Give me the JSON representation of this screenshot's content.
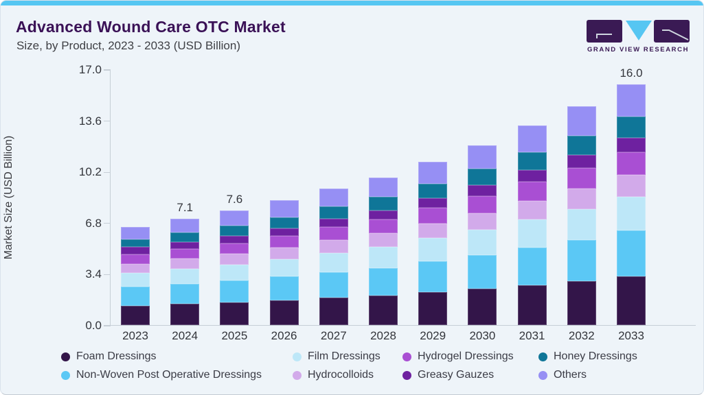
{
  "header": {
    "title": "Advanced Wound Care OTC Market",
    "subtitle": "Size, by Product, 2023 - 2033 (USD Billion)",
    "brand": "GRAND VIEW RESEARCH"
  },
  "colors": {
    "accent_bar": "#56c6f2",
    "title_text": "#3a1156",
    "logo_purple": "#3a1a54",
    "logo_cyan": "#56c6f2",
    "logo_mark": "#cfd6df",
    "card_bg": "#eef4f9",
    "axis_line": "#c6ced6"
  },
  "chart_data": {
    "type": "bar",
    "stacked": true,
    "title": "Advanced Wound Care OTC Market",
    "subtitle": "Size, by Product, 2023 - 2033 (USD Billion)",
    "xlabel": "",
    "ylabel": "Market Size (USD Billion)",
    "ylim": [
      0,
      17.0
    ],
    "ytick_labels": [
      "17.0",
      "13.6",
      "10.2",
      "6.8",
      "3.4",
      "0.0"
    ],
    "ytick_values": [
      17.0,
      13.6,
      10.2,
      6.8,
      3.4,
      0.0
    ],
    "grid": false,
    "legend_position": "bottom",
    "categories": [
      "2023",
      "2024",
      "2025",
      "2026",
      "2027",
      "2028",
      "2029",
      "2030",
      "2031",
      "2032",
      "2033"
    ],
    "series": [
      {
        "name": "Foam Dressings",
        "color": "#331549",
        "values": [
          1.3,
          1.42,
          1.52,
          1.66,
          1.82,
          1.96,
          2.18,
          2.4,
          2.66,
          2.92,
          3.25
        ]
      },
      {
        "name": "Film Dressings",
        "color": "#bde7f8",
        "values": [
          0.92,
          1.0,
          1.07,
          1.17,
          1.28,
          1.4,
          1.54,
          1.69,
          1.88,
          2.06,
          2.26
        ]
      },
      {
        "name": "Hydrogel Dressings",
        "color": "#a94fd3",
        "values": [
          0.62,
          0.67,
          0.72,
          0.78,
          0.86,
          0.92,
          1.02,
          1.13,
          1.25,
          1.37,
          1.5
        ]
      },
      {
        "name": "Honey Dressings",
        "color": "#0f7698",
        "values": [
          0.5,
          0.62,
          0.67,
          0.73,
          0.8,
          0.87,
          0.96,
          1.06,
          1.17,
          1.28,
          1.42
        ]
      },
      {
        "name": "Non-Woven Post Operative Dressings",
        "color": "#5bc8f5",
        "values": [
          1.26,
          1.33,
          1.43,
          1.56,
          1.71,
          1.83,
          2.05,
          2.26,
          2.5,
          2.74,
          3.02
        ]
      },
      {
        "name": "Hydrocolloids",
        "color": "#d2aaea",
        "values": [
          0.6,
          0.65,
          0.7,
          0.76,
          0.84,
          0.92,
          1.0,
          1.1,
          1.22,
          1.34,
          1.45
        ]
      },
      {
        "name": "Greasy Gauzes",
        "color": "#6e21a0",
        "values": [
          0.5,
          0.45,
          0.48,
          0.52,
          0.56,
          0.6,
          0.66,
          0.73,
          0.8,
          0.88,
          0.95
        ]
      },
      {
        "name": "Others",
        "color": "#968ff4",
        "values": [
          0.84,
          0.94,
          1.01,
          1.1,
          1.21,
          1.3,
          1.44,
          1.58,
          1.76,
          1.93,
          2.13
        ]
      }
    ],
    "stack_order": [
      "Foam Dressings",
      "Non-Woven Post Operative Dressings",
      "Film Dressings",
      "Hydrocolloids",
      "Hydrogel Dressings",
      "Greasy Gauzes",
      "Honey Dressings",
      "Others"
    ],
    "bar_total_labels": [
      "",
      "7.1",
      "7.6",
      "",
      "",
      "",
      "",
      "",
      "",
      "",
      "16.0"
    ]
  }
}
